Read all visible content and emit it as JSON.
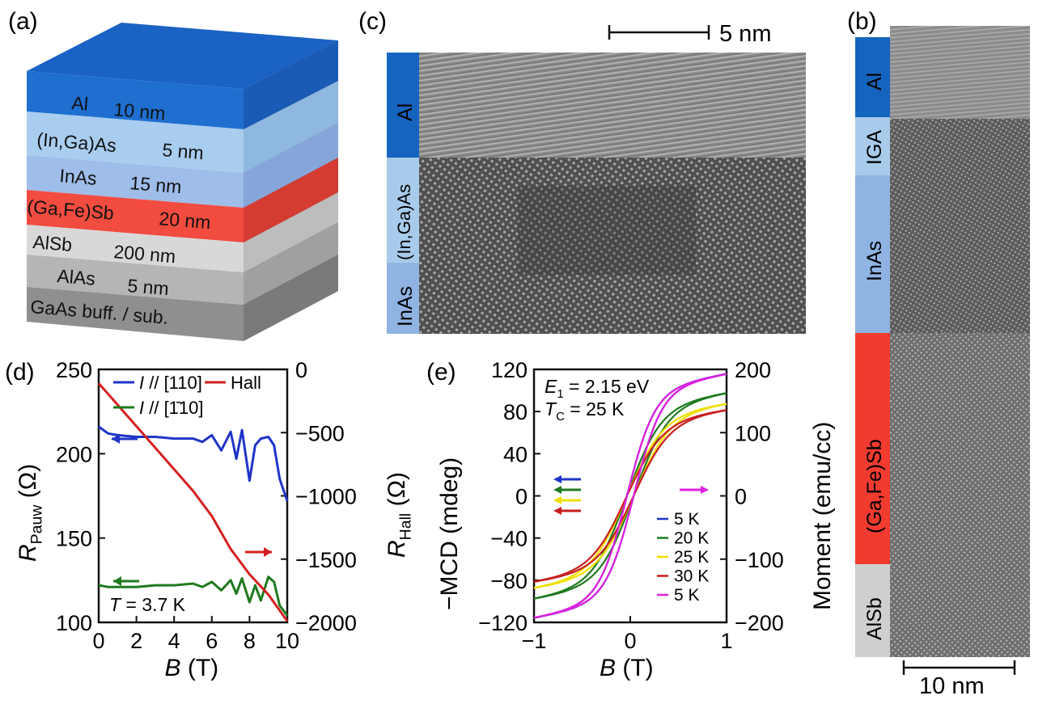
{
  "panel_labels": {
    "a": "(a)",
    "b": "(b)",
    "c": "(c)",
    "d": "(d)",
    "e": "(e)"
  },
  "panel_a": {
    "layers": [
      {
        "name": "Al",
        "thickness": "10 nm",
        "color": "#1f6fd0"
      },
      {
        "name": "(In,Ga)As",
        "thickness": "5 nm",
        "color": "#a9cdef"
      },
      {
        "name": "InAs",
        "thickness": "15 nm",
        "color": "#9fbde9"
      },
      {
        "name": "(Ga,Fe)Sb",
        "thickness": "20 nm",
        "color": "#f24b3f"
      },
      {
        "name": "AlSb",
        "thickness": "200 nm",
        "color": "#d8d8d8"
      },
      {
        "name": "AlAs",
        "thickness": "5 nm",
        "color": "#b5b5b5"
      },
      {
        "name": "GaAs buff. / sub.",
        "thickness": "",
        "color": "#8f8f8f"
      }
    ]
  },
  "panel_c": {
    "scale_bar": "5 nm",
    "strip": [
      {
        "label": "Al",
        "color": "#1565c0"
      },
      {
        "label": "(In,Ga)As",
        "color": "#a8cbeb"
      },
      {
        "label": "InAs",
        "color": "#8fb3e3"
      }
    ]
  },
  "panel_b": {
    "scale_bar": "10 nm",
    "strip": [
      {
        "label": "Al",
        "color": "#1565c0"
      },
      {
        "label": "IGA",
        "color": "#a8cbeb"
      },
      {
        "label": "InAs",
        "color": "#8fb3e3"
      },
      {
        "label": "(Ga,Fe)Sb",
        "color": "#f23b2f"
      },
      {
        "label": "AlSb",
        "color": "#cfcfcf"
      }
    ]
  },
  "chart_data": [
    {
      "type": "line",
      "panel": "d",
      "xlabel_italic": "B",
      "xlabel_rest": " (T)",
      "ylabel_main": "R",
      "ylabel_sub": "Pauw",
      "ylabel_unit": " (Ω)",
      "y2label_main": "R",
      "y2label_sub": "Hall",
      "y2label_unit": " (Ω)",
      "xlim": [
        0,
        10
      ],
      "ylim": [
        100,
        250
      ],
      "y2lim": [
        -2000,
        0
      ],
      "x_ticks": [
        "0",
        "2",
        "4",
        "6",
        "8",
        "10"
      ],
      "y_ticks": [
        "100",
        "150",
        "200",
        "250"
      ],
      "y2_ticks": [
        "−2000",
        "−1500",
        "−1000",
        "−500",
        "0"
      ],
      "annotation_italic": "T",
      "annotation_rest": " = 3.7 K",
      "series": [
        {
          "name_italic": "I",
          "name_rest": " // [110]",
          "color": "#1f35c8",
          "axis": "left",
          "x": [
            0,
            0.5,
            1,
            2,
            3,
            4,
            5,
            5.5,
            6,
            6.5,
            7,
            7.3,
            7.6,
            8,
            8.3,
            8.6,
            9,
            9.3,
            9.6,
            10
          ],
          "y": [
            216,
            212,
            211,
            210,
            210,
            209,
            209,
            207,
            211,
            202,
            213,
            197,
            214,
            184,
            205,
            209,
            210,
            205,
            185,
            172
          ]
        },
        {
          "name_italic": "I",
          "name_rest": " // [1̄10]",
          "color": "#1e7a1e",
          "axis": "left",
          "x": [
            0,
            0.5,
            1,
            2,
            3,
            4,
            5,
            5.5,
            6,
            6.5,
            7,
            7.3,
            7.6,
            8,
            8.3,
            8.6,
            9,
            9.3,
            9.6,
            10
          ],
          "y": [
            122,
            121,
            121,
            121,
            122,
            122,
            123,
            121,
            124,
            119,
            125,
            117,
            126,
            112,
            122,
            113,
            127,
            124,
            110,
            104
          ]
        },
        {
          "name": "Hall",
          "color": "#d42020",
          "axis": "right",
          "x": [
            0,
            1,
            2,
            3,
            4,
            5,
            6,
            7,
            8,
            9,
            10
          ],
          "y": [
            -110,
            -280,
            -450,
            -620,
            -790,
            -960,
            -1160,
            -1420,
            -1620,
            -1780,
            -1990
          ]
        }
      ],
      "arrows": [
        {
          "series": "blue",
          "direction": "left",
          "color": "#1f35c8"
        },
        {
          "series": "green",
          "direction": "left",
          "color": "#1e7a1e"
        },
        {
          "series": "red",
          "direction": "right",
          "color": "#d42020"
        }
      ]
    },
    {
      "type": "line",
      "panel": "e",
      "xlabel_italic": "B",
      "xlabel_rest": " (T)",
      "ylabel": "−MCD (mdeg)",
      "y2label": "Moment (emu/cc)",
      "xlim": [
        -1,
        1
      ],
      "ylim": [
        -120,
        120
      ],
      "y2lim": [
        -200,
        200
      ],
      "x_ticks": [
        "−1",
        "0",
        "1"
      ],
      "y_ticks": [
        "−120",
        "−80",
        "−40",
        "0",
        "40",
        "80",
        "120"
      ],
      "y2_ticks": [
        "−200",
        "−100",
        "0",
        "100",
        "200"
      ],
      "annotation1_italic": "E",
      "annotation1_sub": "1",
      "annotation1_rest": " = 2.15 eV",
      "annotation2_italic": "T",
      "annotation2_sub": "C",
      "annotation2_rest": " = 25 K",
      "series": [
        {
          "name": "5 K",
          "color": "#1f35c8",
          "axis": "left",
          "saturation": 116,
          "width": 0.28
        },
        {
          "name": "20 K",
          "color": "#1e7a1e",
          "axis": "left",
          "saturation": 98,
          "width": 0.34
        },
        {
          "name": "25 K",
          "color": "#f0e000",
          "axis": "left",
          "saturation": 88,
          "width": 0.36
        },
        {
          "name": "30 K",
          "color": "#c81e1e",
          "axis": "left",
          "saturation": 82,
          "width": 0.36
        },
        {
          "name": "5 K",
          "color": "#e020e0",
          "axis": "right",
          "saturation": 193,
          "width": 0.28
        }
      ]
    }
  ]
}
